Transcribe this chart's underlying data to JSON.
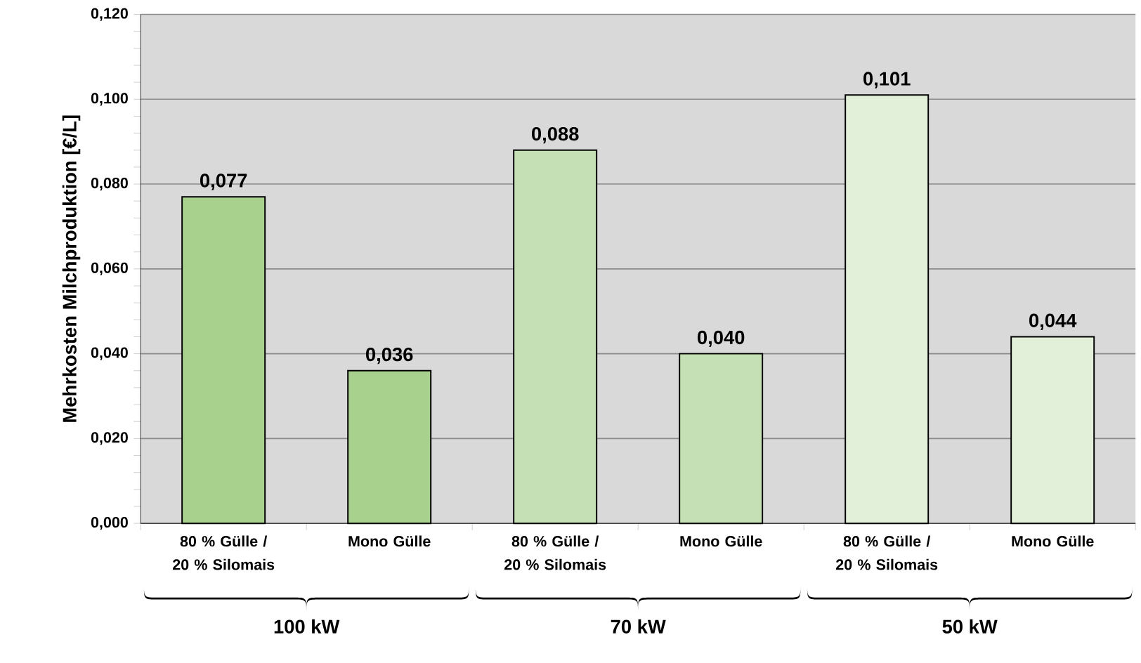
{
  "chart_data": {
    "type": "bar",
    "ylabel": "Mehrkosten Milchproduktion [€/L]",
    "categories": [
      "80 % Gülle / 20 % Silomais",
      "Mono Gülle",
      "80 % Gülle / 20 % Silomais",
      "Mono Gülle",
      "80 % Gülle / 20 % Silomais",
      "Mono Gülle"
    ],
    "values": [
      0.077,
      0.036,
      0.088,
      0.04,
      0.101,
      0.044
    ],
    "value_labels": [
      "0,077",
      "0,036",
      "0,088",
      "0,040",
      "0,101",
      "0,044"
    ],
    "colors": [
      "#a9d18e",
      "#a9d18e",
      "#c5e0b4",
      "#c5e0b4",
      "#e2efd9",
      "#e2efd9"
    ],
    "ylim": [
      0,
      0.12
    ],
    "yticks": [
      {
        "value": 0,
        "label": "0,000"
      },
      {
        "value": 0.02,
        "label": "0,020"
      },
      {
        "value": 0.04,
        "label": "0,040"
      },
      {
        "value": 0.06,
        "label": "0,060"
      },
      {
        "value": 0.08,
        "label": "0,080"
      },
      {
        "value": 0.1,
        "label": "0,100"
      },
      {
        "value": 0.12,
        "label": "0,120"
      }
    ],
    "grid": "y",
    "annotations": [
      "100 kW",
      "70 kW",
      "50 kW"
    ]
  }
}
